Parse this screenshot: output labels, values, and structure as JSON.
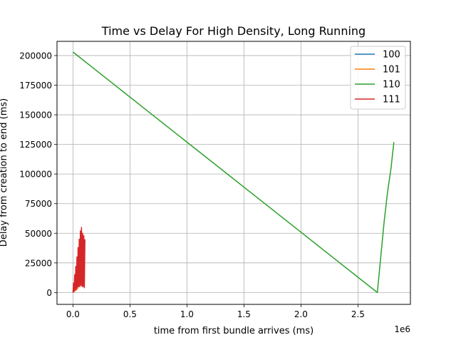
{
  "chart_data": {
    "type": "line",
    "title": "Time vs Delay For High Density, Long Running",
    "xlabel": "time from first bundle arrives (ms)",
    "ylabel": "Delay from creation to end (ms)",
    "x_offset_label": "1e6",
    "x_scale": 1000000,
    "xlim": [
      -140000,
      2960000
    ],
    "ylim": [
      -10000,
      212000
    ],
    "grid": true,
    "legend_position": "top-right",
    "x_ticks": [
      {
        "value": 0,
        "label": "0.0"
      },
      {
        "value": 500000,
        "label": "0.5"
      },
      {
        "value": 1000000,
        "label": "1.0"
      },
      {
        "value": 1500000,
        "label": "1.5"
      },
      {
        "value": 2000000,
        "label": "2.0"
      },
      {
        "value": 2500000,
        "label": "2.5"
      }
    ],
    "y_ticks": [
      {
        "value": 0,
        "label": "0"
      },
      {
        "value": 25000,
        "label": "25000"
      },
      {
        "value": 50000,
        "label": "50000"
      },
      {
        "value": 75000,
        "label": "75000"
      },
      {
        "value": 100000,
        "label": "100000"
      },
      {
        "value": 125000,
        "label": "125000"
      },
      {
        "value": 150000,
        "label": "150000"
      },
      {
        "value": 175000,
        "label": "175000"
      },
      {
        "value": 200000,
        "label": "200000"
      }
    ],
    "series": [
      {
        "name": "100",
        "color": "#1f77b4",
        "x": [
          0,
          3000,
          6000,
          9000,
          12000
        ],
        "y": [
          0,
          1500,
          400,
          2500,
          800
        ]
      },
      {
        "name": "101",
        "color": "#ff7f0e",
        "x": [
          0,
          5000,
          10000,
          15000,
          20000,
          25000,
          30000,
          35000,
          40000,
          45000,
          50000
        ],
        "y": [
          0,
          3000,
          800,
          6000,
          1500,
          10000,
          2000,
          14000,
          3000,
          20000,
          5000
        ]
      },
      {
        "name": "110",
        "color": "#2ca02c",
        "x": [
          0,
          2670000,
          2700000,
          2730000,
          2760000,
          2790000,
          2815000
        ],
        "y": [
          203000,
          0,
          30000,
          60000,
          85000,
          105000,
          127000
        ]
      },
      {
        "name": "111",
        "color": "#d62728",
        "x": [
          0,
          5000,
          10000,
          15000,
          20000,
          25000,
          30000,
          35000,
          40000,
          45000,
          50000,
          55000,
          60000,
          65000,
          70000,
          75000,
          80000,
          85000,
          90000,
          95000,
          100000,
          105000
        ],
        "y": [
          0,
          8000,
          1000,
          15000,
          2000,
          22000,
          3000,
          30000,
          4000,
          38000,
          5000,
          45000,
          5000,
          52000,
          6000,
          55000,
          5000,
          50000,
          5000,
          48000,
          4000,
          45000
        ]
      }
    ]
  }
}
